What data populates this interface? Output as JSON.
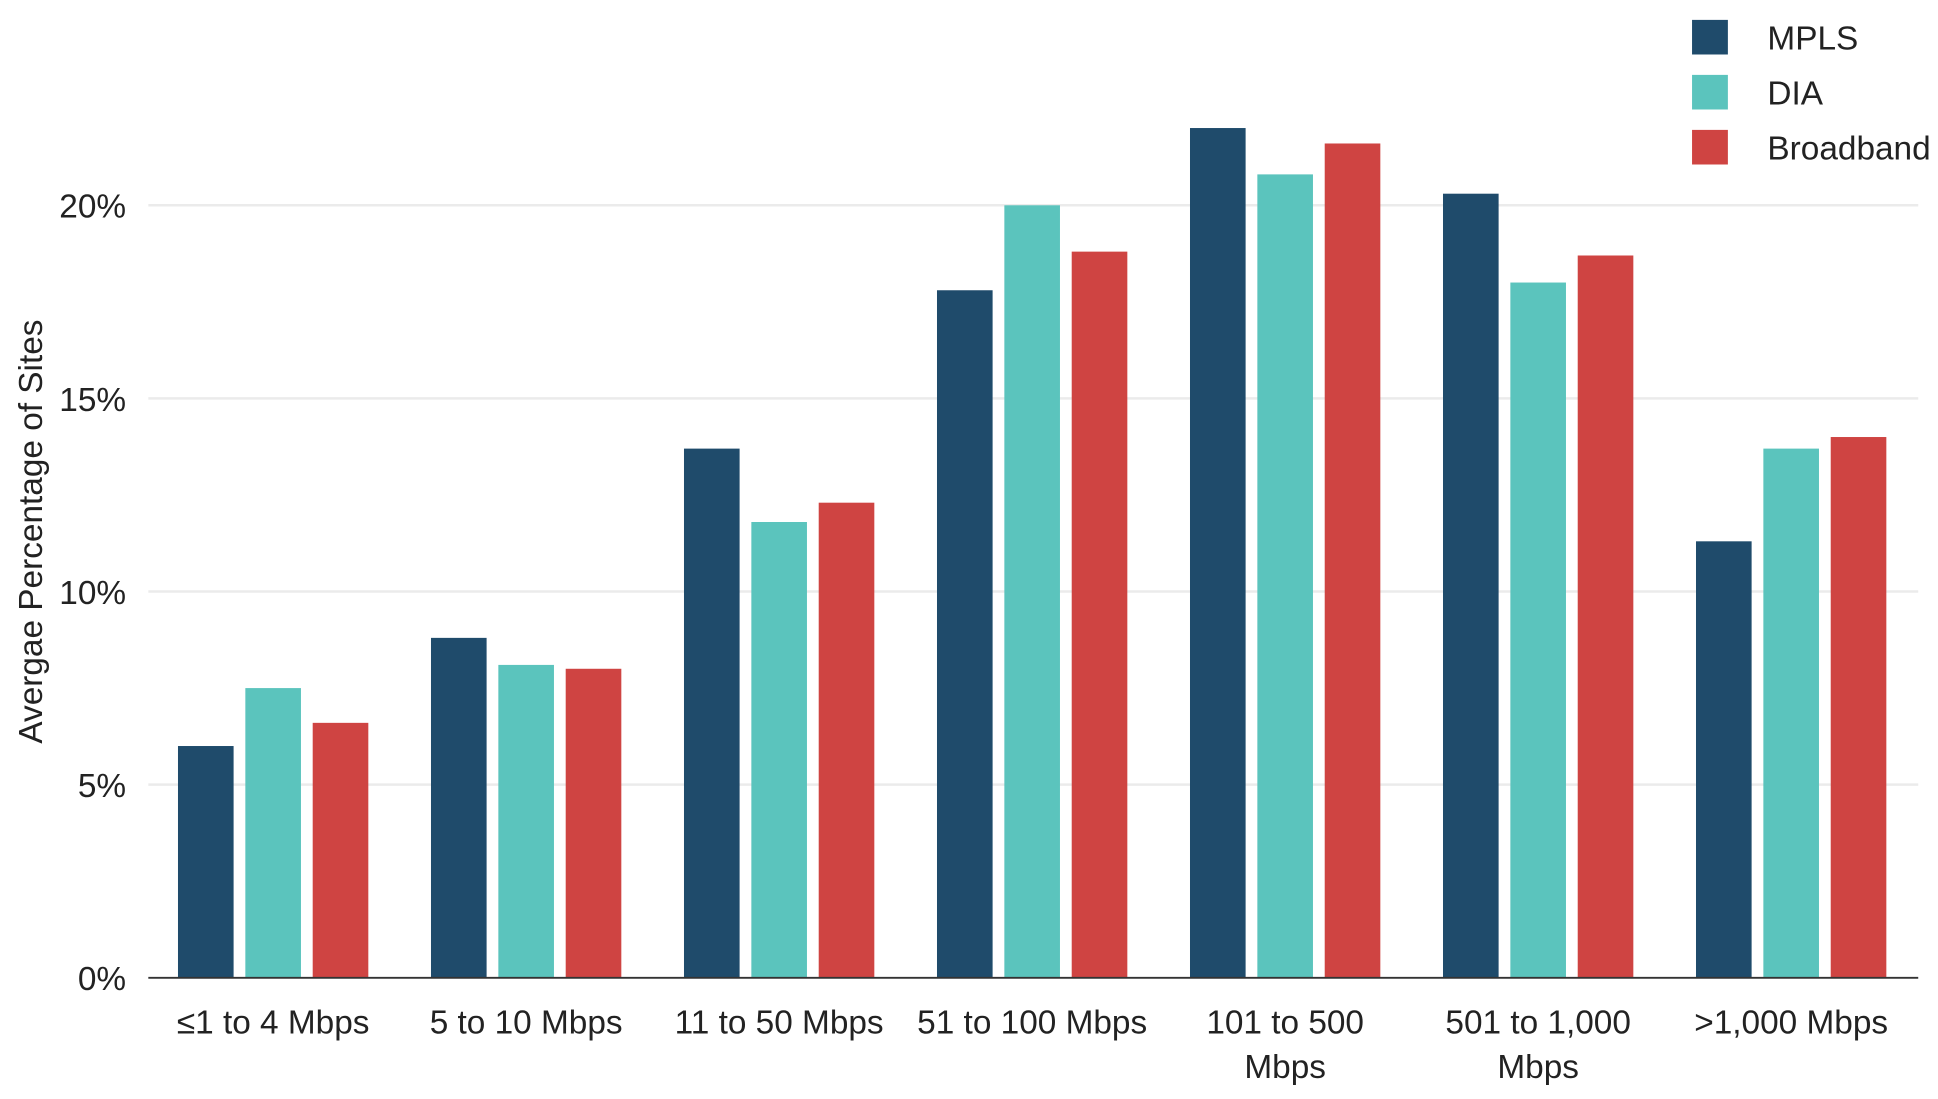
{
  "chart_data": {
    "type": "bar",
    "title": "",
    "xlabel": "",
    "ylabel": "Avergae Percentage of Sites",
    "ylim": [
      0,
      23
    ],
    "yticks": [
      0,
      5,
      10,
      15,
      20
    ],
    "ytick_labels": [
      "0%",
      "5%",
      "10%",
      "15%",
      "20%"
    ],
    "grid": "horizontal",
    "legend_position": "top-right",
    "categories": [
      [
        "≤1 to 4 Mbps"
      ],
      [
        "5 to 10 Mbps"
      ],
      [
        "11 to 50 Mbps"
      ],
      [
        "51 to 100 Mbps"
      ],
      [
        "101 to 500",
        "Mbps"
      ],
      [
        "501 to 1,000",
        "Mbps"
      ],
      [
        ">1,000 Mbps"
      ]
    ],
    "series": [
      {
        "name": "MPLS",
        "color": "#1f4b6b",
        "values": [
          6.0,
          8.8,
          13.7,
          17.8,
          22.0,
          20.3,
          11.3
        ]
      },
      {
        "name": "DIA",
        "color": "#5bc4bd",
        "values": [
          7.5,
          8.1,
          11.8,
          20.0,
          20.8,
          18.0,
          13.7
        ]
      },
      {
        "name": "Broadband",
        "color": "#cf4442",
        "values": [
          6.6,
          8.0,
          12.3,
          18.8,
          21.6,
          18.7,
          14.0
        ]
      }
    ]
  }
}
